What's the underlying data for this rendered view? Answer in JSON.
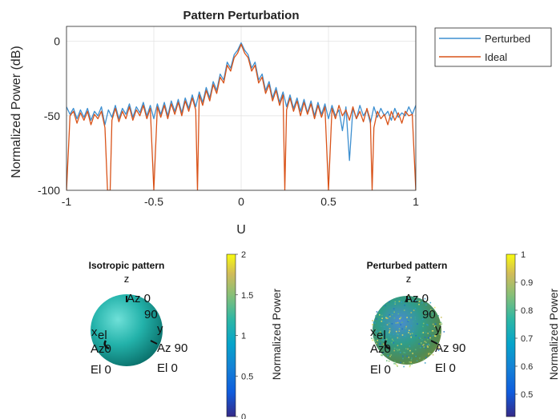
{
  "chart_data": [
    {
      "type": "line",
      "title": "Pattern Perturbation",
      "xlabel": "U",
      "ylabel": "Normalized Power (dB)",
      "xlim": [
        -1,
        1
      ],
      "ylim": [
        -100,
        10
      ],
      "xticks": [
        "-1",
        "-0.5",
        "0",
        "0.5",
        "1"
      ],
      "yticks": [
        "0",
        "-50",
        "-100"
      ],
      "grid": true,
      "legend_position": "outside-top-right",
      "series": [
        {
          "name": "Perturbed",
          "color": "#3d8fd0",
          "x": [
            -1,
            -0.98,
            -0.96,
            -0.94,
            -0.92,
            -0.9,
            -0.88,
            -0.86,
            -0.84,
            -0.82,
            -0.8,
            -0.78,
            -0.76,
            -0.74,
            -0.72,
            -0.7,
            -0.68,
            -0.66,
            -0.64,
            -0.62,
            -0.6,
            -0.58,
            -0.56,
            -0.54,
            -0.52,
            -0.5,
            -0.48,
            -0.46,
            -0.44,
            -0.42,
            -0.4,
            -0.38,
            -0.36,
            -0.34,
            -0.32,
            -0.3,
            -0.28,
            -0.26,
            -0.24,
            -0.22,
            -0.2,
            -0.18,
            -0.16,
            -0.14,
            -0.12,
            -0.1,
            -0.08,
            -0.06,
            -0.04,
            -0.02,
            0,
            0.02,
            0.04,
            0.06,
            0.08,
            0.1,
            0.12,
            0.14,
            0.16,
            0.18,
            0.2,
            0.22,
            0.24,
            0.26,
            0.28,
            0.3,
            0.32,
            0.34,
            0.36,
            0.38,
            0.4,
            0.42,
            0.44,
            0.46,
            0.48,
            0.5,
            0.52,
            0.54,
            0.56,
            0.58,
            0.6,
            0.62,
            0.64,
            0.66,
            0.68,
            0.7,
            0.72,
            0.74,
            0.76,
            0.78,
            0.8,
            0.82,
            0.84,
            0.86,
            0.88,
            0.9,
            0.92,
            0.94,
            0.96,
            0.98,
            1
          ],
          "y": [
            -44,
            -49,
            -45,
            -52,
            -46,
            -51,
            -45,
            -53,
            -47,
            -50,
            -44,
            -56,
            -46,
            -51,
            -43,
            -52,
            -45,
            -49,
            -42,
            -51,
            -44,
            -48,
            -41,
            -50,
            -43,
            -52,
            -42,
            -49,
            -41,
            -50,
            -40,
            -47,
            -39,
            -48,
            -38,
            -45,
            -36,
            -44,
            -34,
            -41,
            -31,
            -38,
            -27,
            -33,
            -22,
            -26,
            -14,
            -18,
            -9,
            -6,
            -1,
            -6,
            -9,
            -18,
            -14,
            -26,
            -22,
            -33,
            -27,
            -38,
            -31,
            -41,
            -34,
            -44,
            -36,
            -45,
            -38,
            -47,
            -39,
            -48,
            -40,
            -50,
            -41,
            -49,
            -42,
            -52,
            -43,
            -50,
            -46,
            -60,
            -44,
            -80,
            -45,
            -52,
            -43,
            -50,
            -46,
            -55,
            -44,
            -51,
            -45,
            -50,
            -47,
            -53,
            -45,
            -51,
            -48,
            -50,
            -44,
            -49,
            -43
          ]
        },
        {
          "name": "Ideal",
          "color": "#d95319",
          "x": [
            -1,
            -0.98,
            -0.96,
            -0.94,
            -0.92,
            -0.9,
            -0.88,
            -0.86,
            -0.84,
            -0.82,
            -0.8,
            -0.78,
            -0.765,
            -0.75,
            -0.74,
            -0.72,
            -0.7,
            -0.68,
            -0.66,
            -0.64,
            -0.62,
            -0.6,
            -0.58,
            -0.56,
            -0.54,
            -0.52,
            -0.5,
            -0.48,
            -0.46,
            -0.44,
            -0.42,
            -0.4,
            -0.38,
            -0.36,
            -0.34,
            -0.32,
            -0.3,
            -0.28,
            -0.26,
            -0.25,
            -0.24,
            -0.22,
            -0.2,
            -0.18,
            -0.16,
            -0.14,
            -0.12,
            -0.1,
            -0.08,
            -0.06,
            -0.04,
            -0.02,
            0,
            0.02,
            0.04,
            0.06,
            0.08,
            0.1,
            0.12,
            0.14,
            0.16,
            0.18,
            0.2,
            0.22,
            0.24,
            0.25,
            0.26,
            0.28,
            0.3,
            0.32,
            0.34,
            0.36,
            0.38,
            0.4,
            0.42,
            0.44,
            0.46,
            0.48,
            0.5,
            0.52,
            0.54,
            0.56,
            0.58,
            0.6,
            0.62,
            0.64,
            0.66,
            0.68,
            0.7,
            0.72,
            0.74,
            0.75,
            0.76,
            0.78,
            0.8,
            0.82,
            0.84,
            0.86,
            0.88,
            0.9,
            0.92,
            0.94,
            0.96,
            0.98,
            1
          ],
          "y": [
            -100,
            -50,
            -47,
            -55,
            -48,
            -53,
            -47,
            -56,
            -49,
            -52,
            -47,
            -58,
            -100,
            -100,
            -53,
            -45,
            -54,
            -47,
            -52,
            -44,
            -53,
            -46,
            -50,
            -43,
            -52,
            -45,
            -100,
            -44,
            -51,
            -43,
            -52,
            -42,
            -49,
            -41,
            -50,
            -40,
            -47,
            -38,
            -46,
            -100,
            -36,
            -43,
            -33,
            -40,
            -29,
            -35,
            -24,
            -28,
            -16,
            -20,
            -11,
            -8,
            -2,
            -8,
            -11,
            -20,
            -16,
            -28,
            -24,
            -35,
            -29,
            -40,
            -33,
            -43,
            -36,
            -100,
            -46,
            -38,
            -47,
            -40,
            -50,
            -41,
            -49,
            -42,
            -52,
            -43,
            -51,
            -44,
            -100,
            -45,
            -52,
            -43,
            -50,
            -46,
            -53,
            -44,
            -52,
            -47,
            -54,
            -45,
            -53,
            -100,
            -58,
            -47,
            -52,
            -49,
            -56,
            -47,
            -53,
            -48,
            -55,
            -47,
            -50,
            -49,
            -100
          ]
        }
      ]
    },
    {
      "type": "other",
      "title": "Isotropic pattern",
      "labels": [
        "z",
        "Az 0",
        "90",
        "x",
        "el",
        "Az0",
        "y",
        "Az 90",
        "El 0",
        "El 0"
      ],
      "colorbar": {
        "label": "Normalized Power",
        "ticks": [
          "2",
          "1.5",
          "1",
          "0.5",
          "0"
        ]
      }
    },
    {
      "type": "other",
      "title": "Perturbed pattern",
      "labels": [
        "z",
        "Az 0",
        "90",
        "x",
        "el",
        "Az0",
        "y",
        "Az 90",
        "El 0",
        "El 0"
      ],
      "colorbar": {
        "label": "Normalized Power",
        "ticks": [
          "1",
          "0.9",
          "0.8",
          "0.7",
          "0.6",
          "0.5"
        ]
      }
    }
  ]
}
